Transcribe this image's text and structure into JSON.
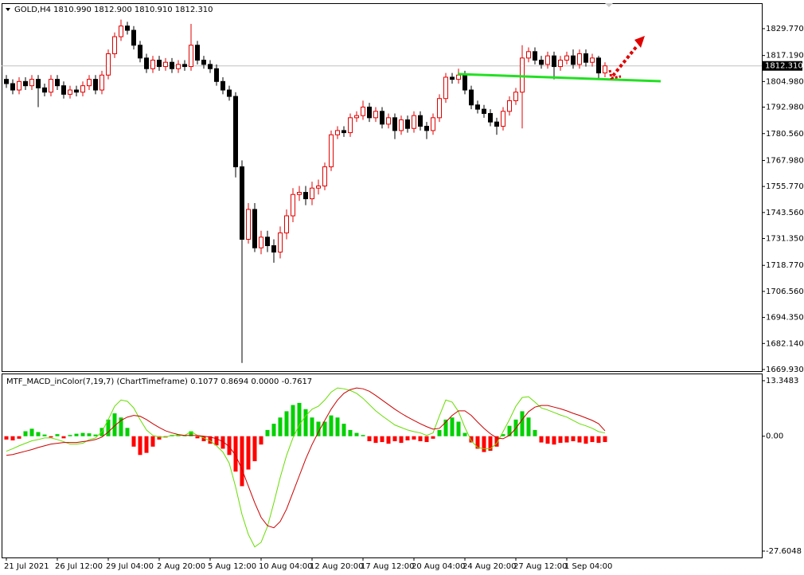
{
  "chart_data": [
    {
      "type": "candlestick",
      "title": "GOLD,H4  1810.990 1812.900 1810.910 1812.310",
      "categories": [
        "21 Jul 2021",
        null,
        null,
        null,
        null,
        null,
        null,
        null,
        "26 Jul 12:00",
        null,
        null,
        null,
        null,
        null,
        null,
        null,
        "29 Jul 04:00",
        null,
        null,
        null,
        null,
        null,
        null,
        null,
        "2 Aug 20:00",
        null,
        null,
        null,
        null,
        null,
        null,
        null,
        "5 Aug 12:00",
        null,
        null,
        null,
        null,
        null,
        null,
        null,
        "10 Aug 04:00",
        null,
        null,
        null,
        null,
        null,
        null,
        null,
        "12 Aug 20:00",
        null,
        null,
        null,
        null,
        null,
        null,
        null,
        "17 Aug 12:00",
        null,
        null,
        null,
        null,
        null,
        null,
        null,
        "20 Aug 04:00",
        null,
        null,
        null,
        null,
        null,
        null,
        null,
        "24 Aug 20:00",
        null,
        null,
        null,
        null,
        null,
        null,
        null,
        "27 Aug 12:00",
        null,
        null,
        null,
        null,
        null,
        null,
        null,
        "1 Sep 04:00",
        null,
        null,
        null,
        null,
        null,
        null
      ],
      "open": [
        1806,
        1804,
        1801,
        1805,
        1803,
        1806,
        1802,
        1800,
        1806,
        1803,
        1799,
        1801,
        1800,
        1803,
        1806,
        1801,
        1808,
        1818,
        1826,
        1831,
        1829,
        1822,
        1816,
        1811,
        1815,
        1812,
        1814,
        1811,
        1813,
        1812,
        1822,
        1815,
        1813,
        1811,
        1805,
        1801,
        1798,
        1765,
        1731,
        1745,
        1727,
        1732,
        1728,
        1725,
        1734,
        1742,
        1752,
        1753,
        1750,
        1755,
        1756,
        1765,
        1780,
        1782,
        1781,
        1788,
        1789,
        1793,
        1788,
        1791,
        1785,
        1788,
        1782,
        1787,
        1783,
        1789,
        1784,
        1782,
        1788,
        1797,
        1807,
        1806,
        1808,
        1801,
        1794,
        1792,
        1790,
        1786,
        1784,
        1791,
        1796,
        1800,
        1816,
        1819,
        1815,
        1813,
        1817,
        1812,
        1815,
        1817,
        1813,
        1818,
        1814,
        1816,
        1809
      ],
      "high": [
        1808,
        1806,
        1807,
        1807,
        1808,
        1808,
        1804,
        1808,
        1808,
        1805,
        1803,
        1803,
        1805,
        1808,
        1808,
        1810,
        1820,
        1828,
        1834,
        1833,
        1831,
        1824,
        1818,
        1817,
        1817,
        1816,
        1816,
        1815,
        1815,
        1832,
        1824,
        1817,
        1815,
        1813,
        1807,
        1803,
        1800,
        1768,
        1748,
        1748,
        1735,
        1735,
        1731,
        1737,
        1745,
        1755,
        1756,
        1756,
        1758,
        1759,
        1767,
        1782,
        1784,
        1784,
        1790,
        1791,
        1796,
        1795,
        1793,
        1793,
        1790,
        1790,
        1789,
        1789,
        1791,
        1791,
        1786,
        1790,
        1799,
        1809,
        1809,
        1811,
        1810,
        1803,
        1796,
        1794,
        1792,
        1788,
        1793,
        1798,
        1802,
        1822,
        1821,
        1821,
        1817,
        1819,
        1819,
        1817,
        1819,
        1820,
        1820,
        1820,
        1818,
        1817,
        1814
      ],
      "low": [
        1802,
        1799,
        1799,
        1801,
        1801,
        1793,
        1798,
        1798,
        1801,
        1797,
        1797,
        1798,
        1798,
        1801,
        1799,
        1799,
        1806,
        1816,
        1824,
        1827,
        1820,
        1814,
        1809,
        1809,
        1810,
        1810,
        1809,
        1809,
        1810,
        1810,
        1813,
        1811,
        1809,
        1803,
        1799,
        1796,
        1760,
        1673,
        1729,
        1725,
        1724,
        1725,
        1720,
        1722,
        1731,
        1739,
        1749,
        1747,
        1747,
        1752,
        1754,
        1763,
        1778,
        1779,
        1779,
        1786,
        1787,
        1786,
        1786,
        1783,
        1783,
        1778,
        1780,
        1781,
        1781,
        1782,
        1778,
        1780,
        1786,
        1795,
        1804,
        1804,
        1799,
        1792,
        1790,
        1788,
        1784,
        1780,
        1782,
        1789,
        1794,
        1783,
        1814,
        1813,
        1811,
        1811,
        1806,
        1810,
        1813,
        1811,
        1811,
        1812,
        1812,
        1806,
        1807
      ],
      "close": [
        1804,
        1801,
        1805,
        1803,
        1806,
        1802,
        1800,
        1806,
        1803,
        1799,
        1801,
        1800,
        1803,
        1806,
        1801,
        1808,
        1818,
        1826,
        1831,
        1829,
        1822,
        1816,
        1811,
        1815,
        1812,
        1814,
        1811,
        1813,
        1812,
        1822,
        1815,
        1813,
        1811,
        1805,
        1801,
        1798,
        1765,
        1731,
        1745,
        1727,
        1732,
        1728,
        1725,
        1734,
        1742,
        1752,
        1753,
        1750,
        1755,
        1756,
        1765,
        1780,
        1782,
        1781,
        1788,
        1789,
        1793,
        1788,
        1791,
        1785,
        1788,
        1782,
        1787,
        1783,
        1789,
        1784,
        1782,
        1788,
        1797,
        1807,
        1806,
        1808,
        1801,
        1794,
        1792,
        1790,
        1786,
        1784,
        1791,
        1796,
        1800,
        1816,
        1819,
        1815,
        1813,
        1817,
        1812,
        1815,
        1817,
        1813,
        1818,
        1814,
        1816,
        1809,
        1812.31
      ],
      "colors": {
        "up": "#e00000",
        "down": "#000000"
      },
      "current_price": {
        "value": 1812.31,
        "label": "1812.310"
      },
      "ylim": [
        1669.18,
        1841.34
      ],
      "yticks": [
        {
          "value": 1669.93,
          "label": "1669.930"
        },
        {
          "value": 1682.14,
          "label": "1682.140"
        },
        {
          "value": 1694.35,
          "label": "1694.350"
        },
        {
          "value": 1706.56,
          "label": "1706.560"
        },
        {
          "value": 1718.77,
          "label": "1718.770"
        },
        {
          "value": 1731.35,
          "label": "1731.350"
        },
        {
          "value": 1743.56,
          "label": "1743.560"
        },
        {
          "value": 1755.77,
          "label": "1755.770"
        },
        {
          "value": 1767.98,
          "label": "1767.980"
        },
        {
          "value": 1780.56,
          "label": "1780.560"
        },
        {
          "value": 1792.98,
          "label": "1792.980"
        },
        {
          "value": 1804.98,
          "label": "1804.980"
        },
        {
          "value": 1817.19,
          "label": "1817.190"
        },
        {
          "value": 1829.77,
          "label": "1829.770"
        }
      ]
    },
    {
      "type": "macd",
      "title": "MTF_MACD_inColor(7,19,7) (ChartTimeframe) 0.1077 0.8694 0.0000 -0.7617",
      "histogram": [
        -0.8,
        -1.0,
        -0.6,
        1.2,
        1.8,
        1.0,
        0.4,
        -0.3,
        0.5,
        -0.5,
        0.3,
        0.6,
        0.8,
        0.7,
        0.4,
        2.0,
        4.0,
        5.5,
        4.5,
        2.0,
        -2.5,
        -4.5,
        -4.0,
        -2.5,
        -0.8,
        -0.3,
        0.3,
        0.4,
        0.2,
        1.2,
        -0.5,
        -1.2,
        -1.8,
        -2.2,
        -3.0,
        -4.5,
        -8.5,
        -12.0,
        -8.0,
        -6.0,
        -2.0,
        1.5,
        3.0,
        4.5,
        6.0,
        7.5,
        8.0,
        6.5,
        4.5,
        3.5,
        3.5,
        5.0,
        4.5,
        3.0,
        1.5,
        0.8,
        0.3,
        -1.2,
        -1.6,
        -1.4,
        -1.8,
        -1.2,
        -1.6,
        -1.0,
        -0.8,
        -1.2,
        -1.4,
        -0.6,
        1.5,
        4.0,
        4.5,
        3.5,
        0.8,
        -1.5,
        -3.0,
        -3.8,
        -3.5,
        -2.5,
        0.5,
        2.5,
        4.0,
        6.0,
        4.5,
        1.5,
        -1.5,
        -1.8,
        -2.0,
        -1.6,
        -1.5,
        -1.2,
        -1.5,
        -1.8,
        -1.4,
        -1.6,
        -1.4
      ],
      "histogram_colors": {
        "up": "#00d000",
        "down": "#ff0000"
      },
      "series": [
        {
          "color": "#66dd00",
          "values": [
            -3.6,
            -3.0,
            -2.3,
            -1.7,
            -1.1,
            -0.8,
            -0.4,
            -0.4,
            -0.8,
            -1.3,
            -1.9,
            -1.9,
            -1.7,
            -0.8,
            -0.4,
            1.1,
            4.0,
            7.2,
            8.7,
            8.4,
            6.8,
            4.0,
            1.5,
            0.2,
            -0.2,
            -0.2,
            0.2,
            0.2,
            0.2,
            1.1,
            0.2,
            -0.4,
            -1.1,
            -2.3,
            -3.8,
            -6.5,
            -12.2,
            -18.8,
            -23.6,
            -26.6,
            -25.5,
            -21.7,
            -16.0,
            -9.9,
            -4.6,
            -0.4,
            2.7,
            4.9,
            6.5,
            7.2,
            8.7,
            10.6,
            11.6,
            11.4,
            11.0,
            10.3,
            9.1,
            7.6,
            6.1,
            4.9,
            3.8,
            2.7,
            2.1,
            1.5,
            1.1,
            0.8,
            0.2,
            0.8,
            4.9,
            8.7,
            8.2,
            5.9,
            2.1,
            -1.1,
            -2.7,
            -3.0,
            -3.0,
            -1.7,
            1.1,
            4.0,
            7.2,
            9.3,
            9.5,
            8.2,
            6.8,
            6.3,
            5.7,
            5.1,
            4.6,
            3.8,
            3.0,
            2.5,
            1.9,
            1.1,
            0.8
          ]
        },
        {
          "color": "#cc0000",
          "values": [
            -4.6,
            -4.4,
            -4.0,
            -3.6,
            -3.2,
            -2.7,
            -2.3,
            -1.9,
            -1.7,
            -1.5,
            -1.5,
            -1.5,
            -1.3,
            -1.1,
            -0.8,
            -0.2,
            1.0,
            2.5,
            3.8,
            4.6,
            5.0,
            4.8,
            4.0,
            3.0,
            2.1,
            1.3,
            0.8,
            0.4,
            0.2,
            0.2,
            0.2,
            0,
            -0.2,
            -0.6,
            -1.3,
            -2.5,
            -4.6,
            -8.0,
            -12.0,
            -16.0,
            -19.5,
            -21.5,
            -22.0,
            -20.5,
            -17.5,
            -13.5,
            -9.5,
            -5.5,
            -2.0,
            1.0,
            3.8,
            6.5,
            8.7,
            10.3,
            11.2,
            11.6,
            11.4,
            10.8,
            9.8,
            8.7,
            7.6,
            6.5,
            5.5,
            4.6,
            3.8,
            3.0,
            2.3,
            1.7,
            1.9,
            3.4,
            5.0,
            6.1,
            6.1,
            5.0,
            3.4,
            1.9,
            0.6,
            -0.4,
            -0.6,
            0.2,
            1.9,
            4.0,
            5.9,
            7.0,
            7.4,
            7.4,
            7.0,
            6.6,
            6.1,
            5.5,
            5.0,
            4.4,
            3.8,
            3.0,
            1.3
          ]
        }
      ],
      "ylim": [
        -29.14,
        14.88
      ],
      "yticks": [
        13.3483,
        {
          "value": 0,
          "label": "0.00"
        },
        -27.6048
      ]
    }
  ]
}
